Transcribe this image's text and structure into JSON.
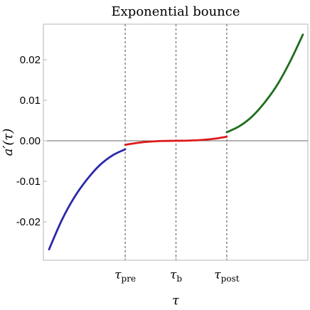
{
  "chart_data": {
    "type": "line",
    "title": "Exponential bounce",
    "xlabel": "τ",
    "ylabel": "a′(τ)",
    "xlim": [
      0,
      5
    ],
    "ylim": [
      -0.03,
      0.03
    ],
    "y_ticks": [
      {
        "value": 0.02,
        "label": "0.02"
      },
      {
        "value": 0.01,
        "label": "0.01"
      },
      {
        "value": 0.0,
        "label": "0.00"
      },
      {
        "value": -0.01,
        "label": "-0.01"
      },
      {
        "value": -0.02,
        "label": "-0.02"
      }
    ],
    "x_ticks": [
      {
        "value": 1.5,
        "base": "τ",
        "sub": "pre"
      },
      {
        "value": 2.5,
        "base": "τ",
        "sub": "b"
      },
      {
        "value": 3.5,
        "base": "τ",
        "sub": "post"
      }
    ],
    "zero_line": true,
    "vertical_markers": [
      1.5,
      2.5,
      3.5
    ],
    "series": [
      {
        "color": "#2a2aa8",
        "x": [
          0,
          0.25,
          0.5,
          0.75,
          1.0,
          1.25,
          1.5
        ],
        "y": [
          -0.0268,
          -0.0196,
          -0.0139,
          -0.0095,
          -0.006,
          -0.0036,
          -0.0021
        ]
      },
      {
        "color": "#dd1a1a",
        "x": [
          1.5,
          1.75,
          2.0,
          2.25,
          2.5,
          2.75,
          3.0,
          3.25,
          3.5
        ],
        "y": [
          -0.001,
          -0.0005,
          -0.0002,
          -5e-05,
          0.0,
          5e-05,
          0.0002,
          0.0005,
          0.001
        ]
      },
      {
        "color": "#1e6e1e",
        "x": [
          3.5,
          3.75,
          4.0,
          4.25,
          4.5,
          4.75,
          5.0
        ],
        "y": [
          0.0021,
          0.0036,
          0.006,
          0.0095,
          0.0139,
          0.0196,
          0.0262
        ]
      }
    ]
  }
}
